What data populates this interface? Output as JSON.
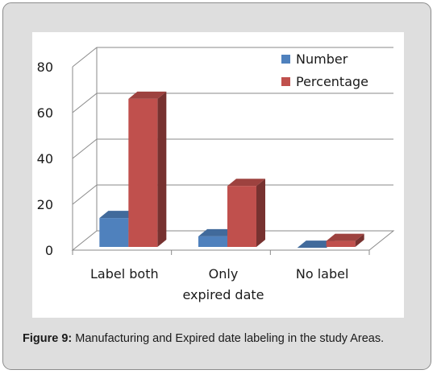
{
  "figure": {
    "caption_label": "Figure 9:",
    "caption_text": "Manufacturing and Expired date labeling in the study Areas."
  },
  "chart_data": {
    "type": "bar",
    "style": "3d-clustered-column",
    "categories": [
      "Label both",
      "Only expired date",
      "No label"
    ],
    "category_lines": [
      [
        "Label both"
      ],
      [
        "Only",
        "expired date"
      ],
      [
        "No label"
      ]
    ],
    "series": [
      {
        "name": "Number",
        "values": [
          14,
          6,
          1
        ],
        "color": "#4f81bd"
      },
      {
        "name": "Percentage",
        "values": [
          66,
          28,
          4
        ],
        "color": "#c0504d"
      }
    ],
    "ylim": [
      0,
      80
    ],
    "yticks": [
      0,
      20,
      40,
      60,
      80
    ],
    "grid": true,
    "legend_position": "top-right"
  }
}
